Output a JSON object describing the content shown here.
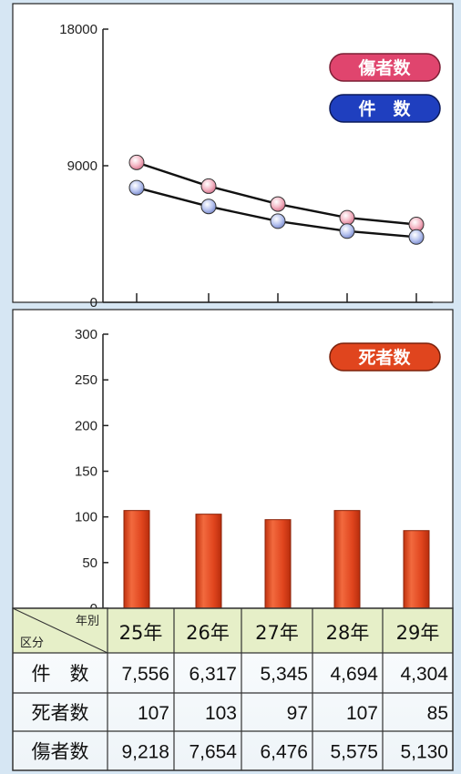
{
  "chart_data": [
    {
      "type": "line",
      "categories": [
        "25年",
        "26年",
        "27年",
        "28年",
        "29年"
      ],
      "series": [
        {
          "name": "傷者数",
          "values": [
            9218,
            7654,
            6476,
            5575,
            5130
          ],
          "color": "#e0456e"
        },
        {
          "name": "件　数",
          "values": [
            7556,
            6317,
            5345,
            4694,
            4304
          ],
          "color": "#1f3fbf"
        }
      ],
      "ylim": [
        0,
        18000
      ],
      "yticks": [
        "0",
        "9000",
        "18000"
      ],
      "legend": "top-right"
    },
    {
      "type": "bar",
      "categories": [
        "25年",
        "26年",
        "27年",
        "28年",
        "29年"
      ],
      "series": [
        {
          "name": "死者数",
          "values": [
            107,
            103,
            97,
            107,
            85
          ],
          "color": "#e0451e"
        }
      ],
      "ylim": [
        0,
        300
      ],
      "yticks": [
        "0",
        "50",
        "100",
        "150",
        "200",
        "250",
        "300"
      ],
      "legend": "top-right"
    }
  ],
  "table": {
    "corner_top": "年別",
    "corner_bottom": "区分",
    "headers": [
      "25年",
      "26年",
      "27年",
      "28年",
      "29年"
    ],
    "rows": [
      {
        "label": "件　数",
        "values": [
          "7,556",
          "6,317",
          "5,345",
          "4,694",
          "4,304"
        ]
      },
      {
        "label": "死者数",
        "values": [
          "107",
          "103",
          "97",
          "107",
          "85"
        ]
      },
      {
        "label": "傷者数",
        "values": [
          "9,218",
          "7,654",
          "6,476",
          "5,575",
          "5,130"
        ]
      }
    ]
  },
  "colors": {
    "frame_bg": "#d6e6f3",
    "table_header_bg": "#e6efc8",
    "bar": "#e0451e",
    "pill_injured": "#e0456e",
    "pill_cases": "#1f3fbf",
    "pill_deaths": "#e0451e"
  }
}
